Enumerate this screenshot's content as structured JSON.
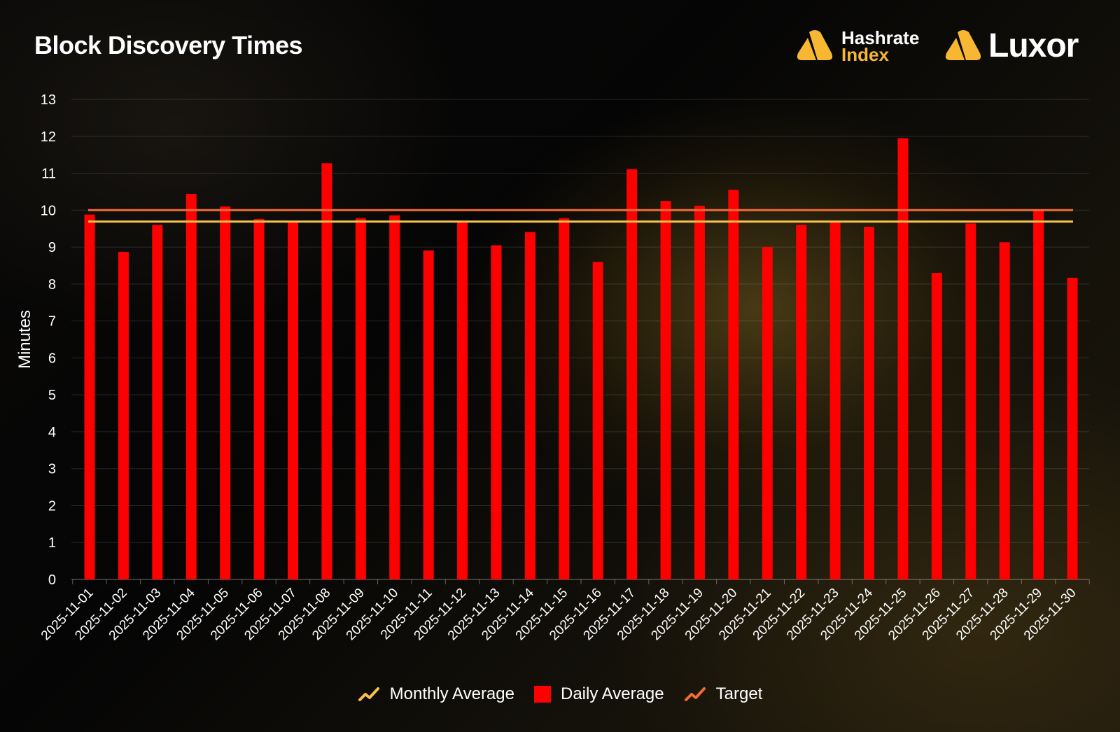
{
  "header": {
    "title": "Block Discovery Times"
  },
  "logos": {
    "hashrate_line1": "Hashrate",
    "hashrate_line2": "Index",
    "luxor": "Luxor"
  },
  "colors": {
    "bar": "#ff0000",
    "monthly_average": "#f7c24a",
    "target": "#f06a3a",
    "brand_gold": "#f7b733"
  },
  "legend": {
    "monthly_average": "Monthly Average",
    "daily_average": "Daily Average",
    "target": "Target"
  },
  "chart_data": {
    "type": "bar",
    "ylabel": "Minutes",
    "ylim": [
      0,
      13
    ],
    "yticks": [
      0,
      1,
      2,
      3,
      4,
      5,
      6,
      7,
      8,
      9,
      10,
      11,
      12,
      13
    ],
    "grid": true,
    "legend_position": "bottom",
    "categories": [
      "2025-11-01",
      "2025-11-02",
      "2025-11-03",
      "2025-11-04",
      "2025-11-05",
      "2025-11-06",
      "2025-11-07",
      "2025-11-08",
      "2025-11-09",
      "2025-11-10",
      "2025-11-11",
      "2025-11-12",
      "2025-11-13",
      "2025-11-14",
      "2025-11-15",
      "2025-11-16",
      "2025-11-17",
      "2025-11-18",
      "2025-11-19",
      "2025-11-20",
      "2025-11-21",
      "2025-11-22",
      "2025-11-23",
      "2025-11-24",
      "2025-11-25",
      "2025-11-26",
      "2025-11-27",
      "2025-11-28",
      "2025-11-29",
      "2025-11-30"
    ],
    "series": [
      {
        "name": "Daily Average",
        "type": "bar",
        "values": [
          9.88,
          8.87,
          9.6,
          10.44,
          10.1,
          9.76,
          9.68,
          11.27,
          9.78,
          9.86,
          8.91,
          9.7,
          9.05,
          9.41,
          9.78,
          8.6,
          11.11,
          10.25,
          10.12,
          10.55,
          9.0,
          9.6,
          9.7,
          9.55,
          11.95,
          8.3,
          9.64,
          9.13,
          10.0,
          8.17
        ]
      },
      {
        "name": "Monthly Average",
        "type": "line",
        "value": 9.69
      },
      {
        "name": "Target",
        "type": "line",
        "value": 10.0
      }
    ]
  }
}
